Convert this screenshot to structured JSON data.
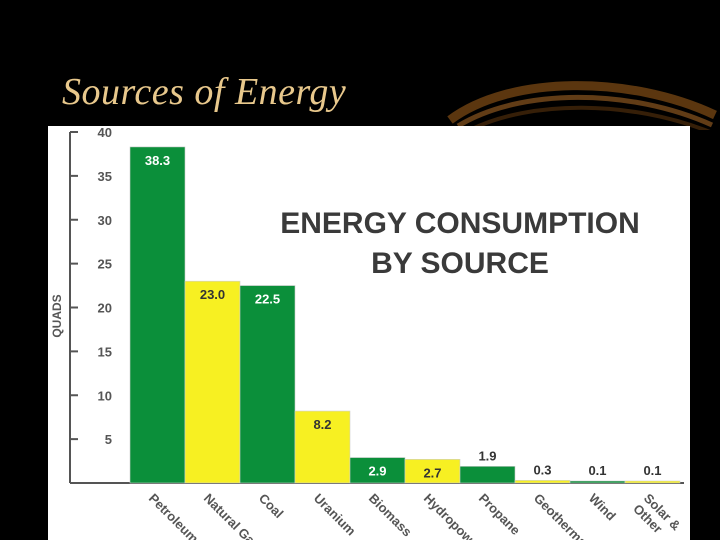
{
  "slide": {
    "title": "Sources of Energy"
  },
  "chart_data": {
    "type": "bar",
    "title": "ENERGY CONSUMPTION BY SOURCE",
    "title_lines": [
      "ENERGY CONSUMPTION",
      "BY SOURCE"
    ],
    "ylabel": "QUADS",
    "xlabel": "",
    "ylim": [
      0,
      40
    ],
    "yticks": [
      5,
      10,
      15,
      20,
      25,
      30,
      35,
      40
    ],
    "grid": false,
    "categories": [
      "Petroleum",
      "Natural Gas",
      "Coal",
      "Uranium",
      "Biomass",
      "Hydropower",
      "Propane",
      "Geothermal",
      "Wind",
      "Solar & Other"
    ],
    "category_lines": [
      [
        "Petroleum"
      ],
      [
        "Natural Gas"
      ],
      [
        "Coal"
      ],
      [
        "Uranium"
      ],
      [
        "Biomass"
      ],
      [
        "Hydropower"
      ],
      [
        "Propane"
      ],
      [
        "Geothermal"
      ],
      [
        "Wind"
      ],
      [
        "Solar &",
        "Other"
      ]
    ],
    "values": [
      38.3,
      23.0,
      22.5,
      8.2,
      2.9,
      2.7,
      1.9,
      0.3,
      0.1,
      0.1
    ],
    "value_labels": [
      "38.3",
      "23.0",
      "22.5",
      "8.2",
      "2.9",
      "2.7",
      "1.9",
      "0.3",
      "0.1",
      "0.1"
    ],
    "colors": [
      "#0b8f3a",
      "#f7f022",
      "#0b8f3a",
      "#f7f022",
      "#0b8f3a",
      "#f7f022",
      "#0b8f3a",
      "#f7f022",
      "#0b8f3a",
      "#f7f022"
    ],
    "label_colors": [
      "#ffffff",
      "#333333",
      "#ffffff",
      "#333333",
      "#ffffff",
      "#333333",
      "#333333",
      "#333333",
      "#333333",
      "#333333"
    ]
  },
  "colors": {
    "background": "#000000",
    "title": "#e8c88c",
    "green": "#0b8f3a",
    "yellow": "#f7f022"
  }
}
